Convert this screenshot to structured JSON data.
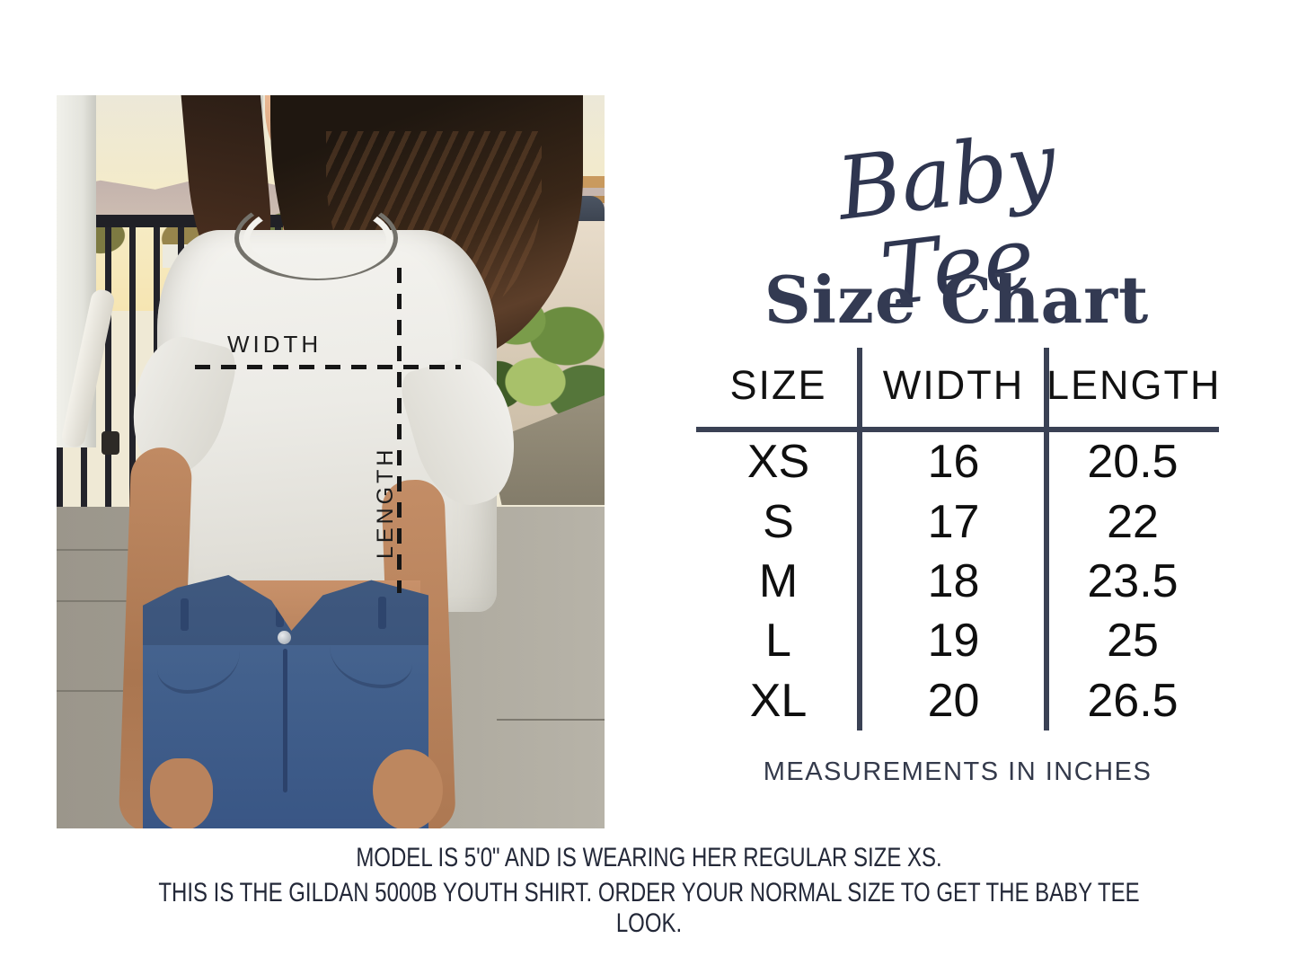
{
  "colors": {
    "accent_navy": "#333a52",
    "table_line": "#3a4154",
    "table_text": "#0f0f0f",
    "background": "#ffffff"
  },
  "title": {
    "script": "Baby Tee",
    "main": "Size Chart"
  },
  "photo": {
    "width_label": "WIDTH",
    "length_label": "LENGTH"
  },
  "size_table": {
    "headers": [
      "SIZE",
      "WIDTH",
      "LENGTH"
    ],
    "rows": [
      {
        "size": "XS",
        "width": "16",
        "length": "20.5"
      },
      {
        "size": "S",
        "width": "17",
        "length": "22"
      },
      {
        "size": "M",
        "width": "18",
        "length": "23.5"
      },
      {
        "size": "L",
        "width": "19",
        "length": "25"
      },
      {
        "size": "XL",
        "width": "20",
        "length": "26.5"
      }
    ],
    "note": "MEASUREMENTS IN INCHES"
  },
  "footer": {
    "line1": "MODEL IS 5'0\" AND IS WEARING HER REGULAR SIZE XS.",
    "line2": "THIS IS THE GILDAN 5000B YOUTH SHIRT. ORDER YOUR NORMAL SIZE TO GET THE BABY TEE LOOK."
  },
  "chart_data": {
    "type": "table",
    "title": "Baby Tee Size Chart",
    "columns": [
      "SIZE",
      "WIDTH",
      "LENGTH"
    ],
    "rows": [
      [
        "XS",
        16,
        20.5
      ],
      [
        "S",
        17,
        22
      ],
      [
        "M",
        18,
        23.5
      ],
      [
        "L",
        19,
        25
      ],
      [
        "XL",
        20,
        26.5
      ]
    ],
    "units": "inches",
    "notes": [
      "MEASUREMENTS IN INCHES",
      "MODEL IS 5'0\" AND IS WEARING HER REGULAR SIZE XS.",
      "THIS IS THE GILDAN 5000B YOUTH SHIRT. ORDER YOUR NORMAL SIZE TO GET THE BABY TEE LOOK."
    ]
  }
}
